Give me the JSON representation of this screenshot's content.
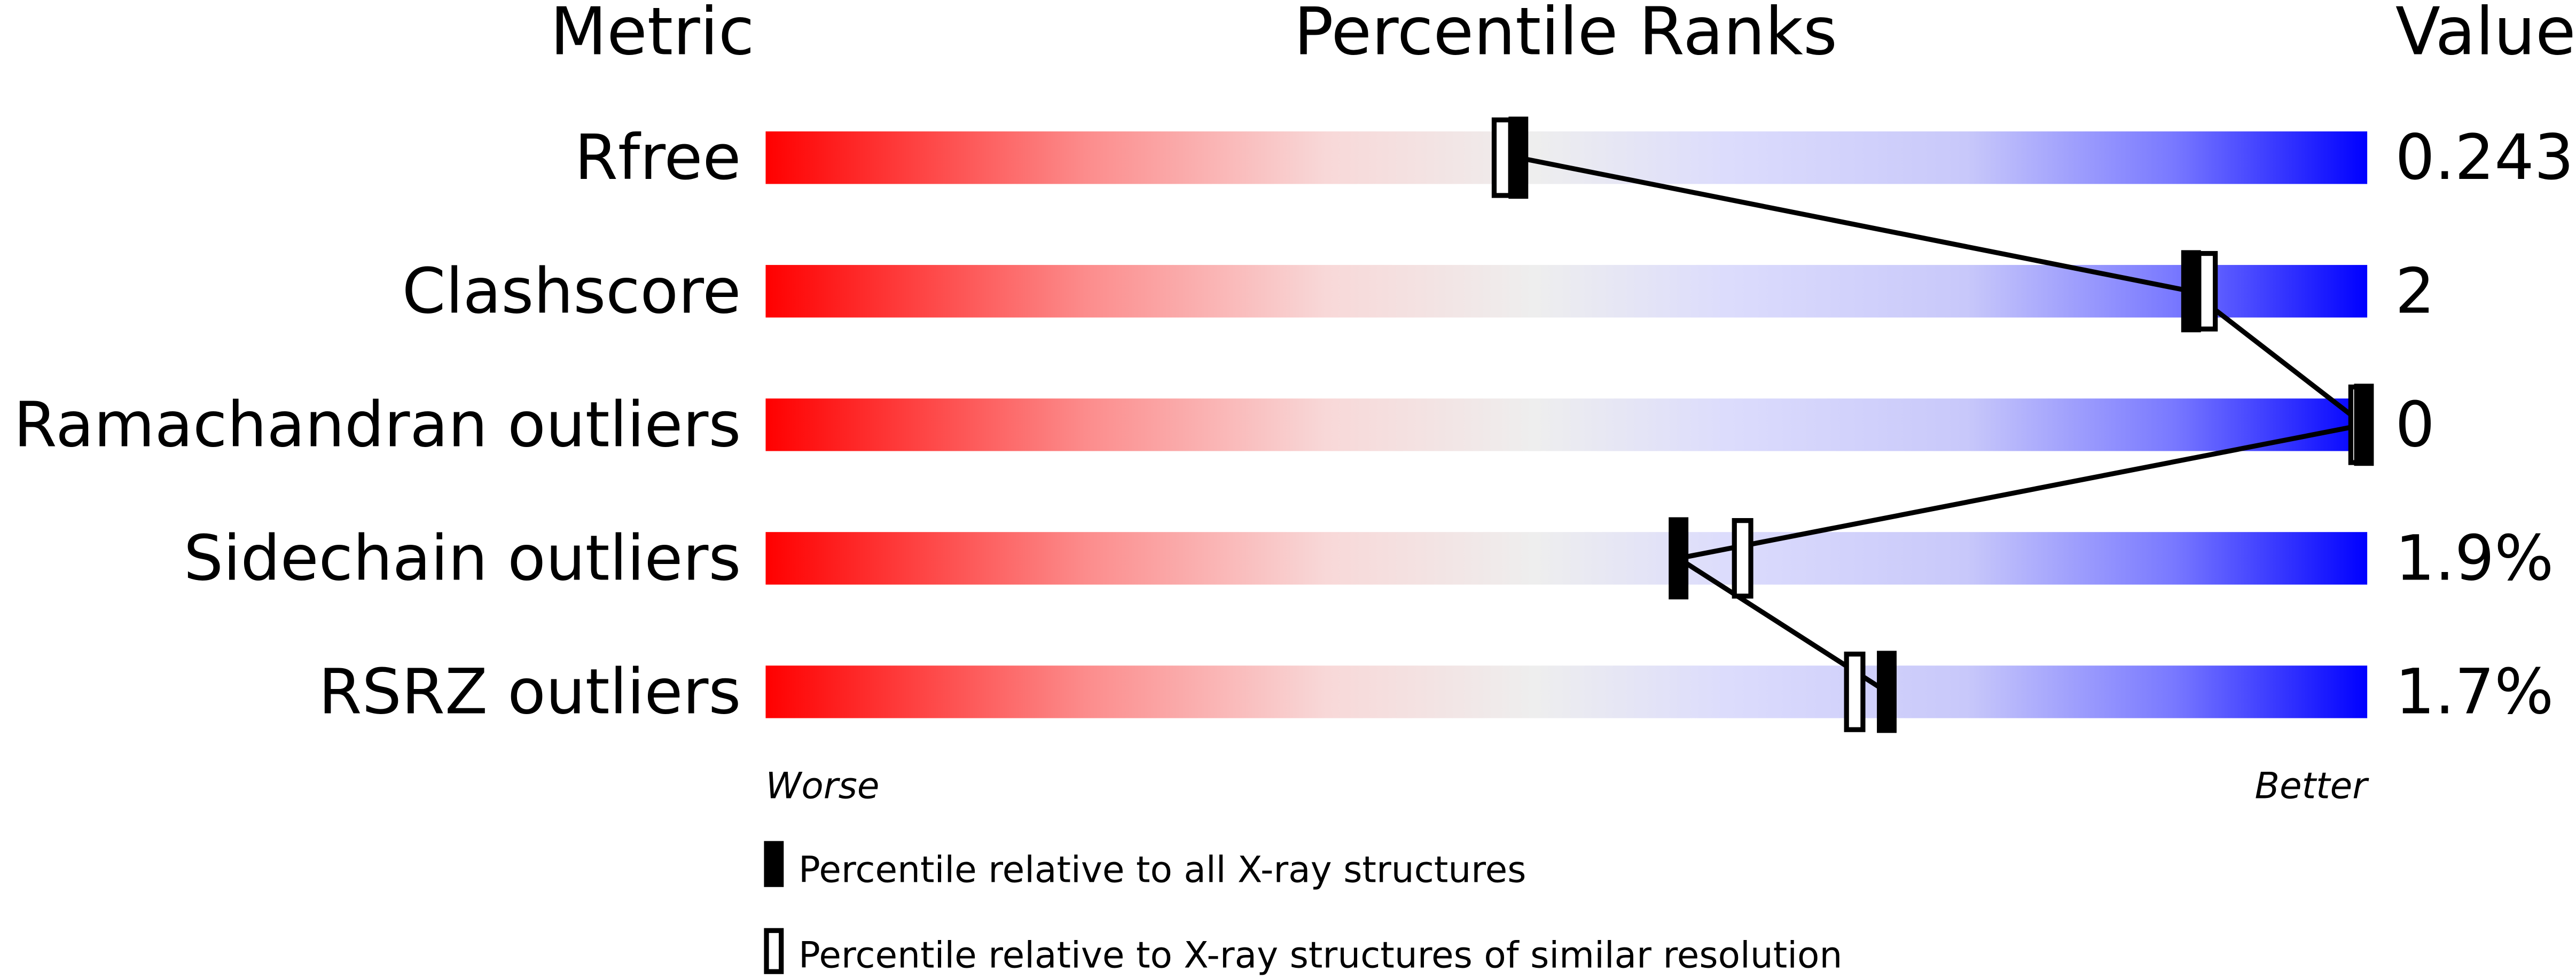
{
  "chart_data": {
    "type": "bar",
    "headers": {
      "metric": "Metric",
      "ranks": "Percentile Ranks",
      "value": "Value"
    },
    "xlim": [
      0,
      100
    ],
    "axis_labels": {
      "left": "Worse",
      "right": "Better"
    },
    "metrics": [
      {
        "name": "Rfree",
        "value": "0.243",
        "percentile_all": 47,
        "percentile_similar": 46
      },
      {
        "name": "Clashscore",
        "value": "2",
        "percentile_all": 89,
        "percentile_similar": 90
      },
      {
        "name": "Ramachandran outliers",
        "value": "0",
        "percentile_all": 100,
        "percentile_similar": 100
      },
      {
        "name": "Sidechain outliers",
        "value": "1.9%",
        "percentile_all": 57,
        "percentile_similar": 61
      },
      {
        "name": "RSRZ outliers",
        "value": "1.7%",
        "percentile_all": 70,
        "percentile_similar": 68
      }
    ],
    "legend": [
      {
        "marker": "filled",
        "label": "Percentile relative to all X-ray structures"
      },
      {
        "marker": "open",
        "label": "Percentile relative to X-ray structures of similar resolution"
      }
    ],
    "colors": {
      "worse": "#ff0000",
      "middle": "#eeeeee",
      "better": "#0000ff"
    }
  }
}
